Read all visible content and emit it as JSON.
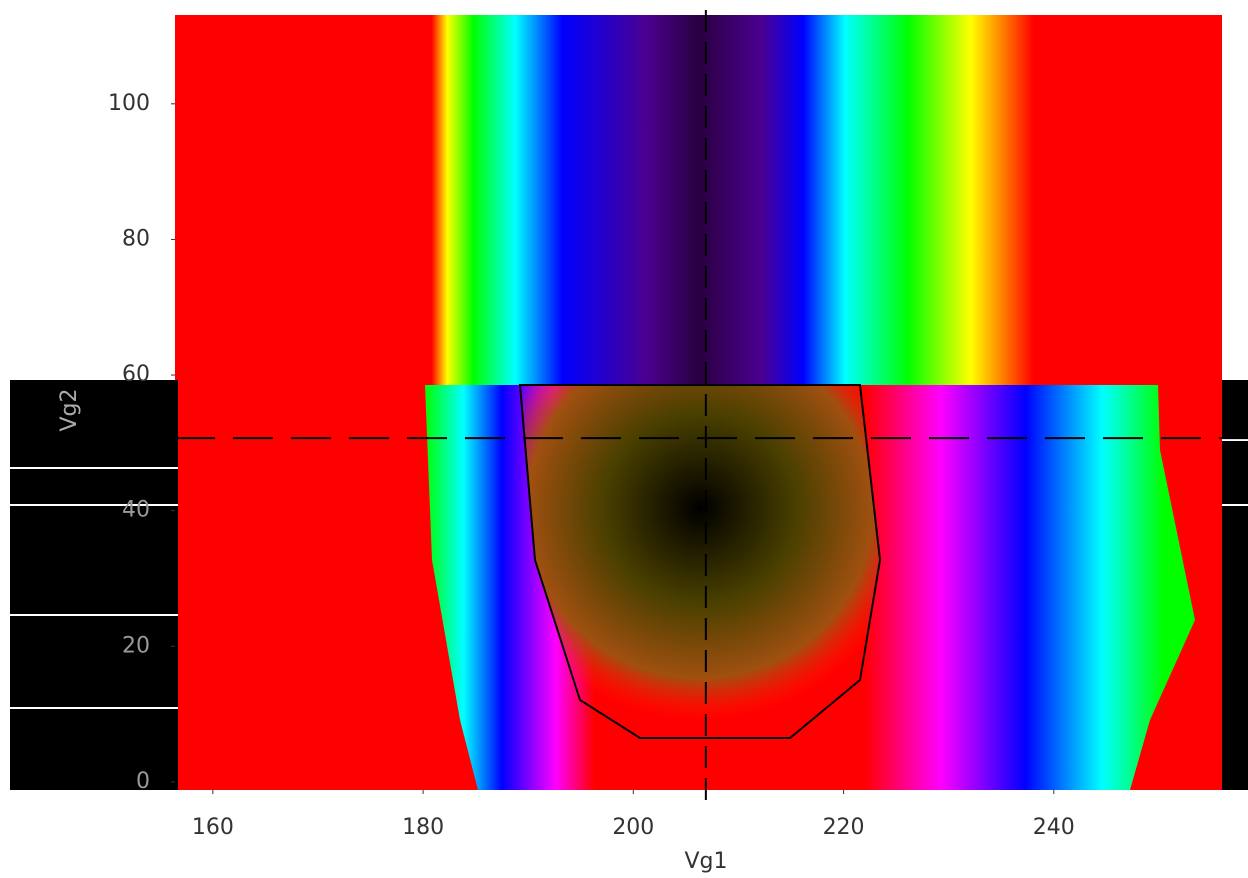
{
  "chart_data": {
    "type": "heatmap",
    "x_label": "Vg1",
    "y_label": "Vg2",
    "xlim": [
      156.4,
      256
    ],
    "ylim": [
      -1.2,
      113.1
    ],
    "xticks": [
      160,
      180,
      200,
      220,
      240
    ],
    "yticks": [
      0,
      20,
      40,
      60,
      80,
      100
    ],
    "crosshair_x": 206.9,
    "crosshair_y": 50.7
  }
}
